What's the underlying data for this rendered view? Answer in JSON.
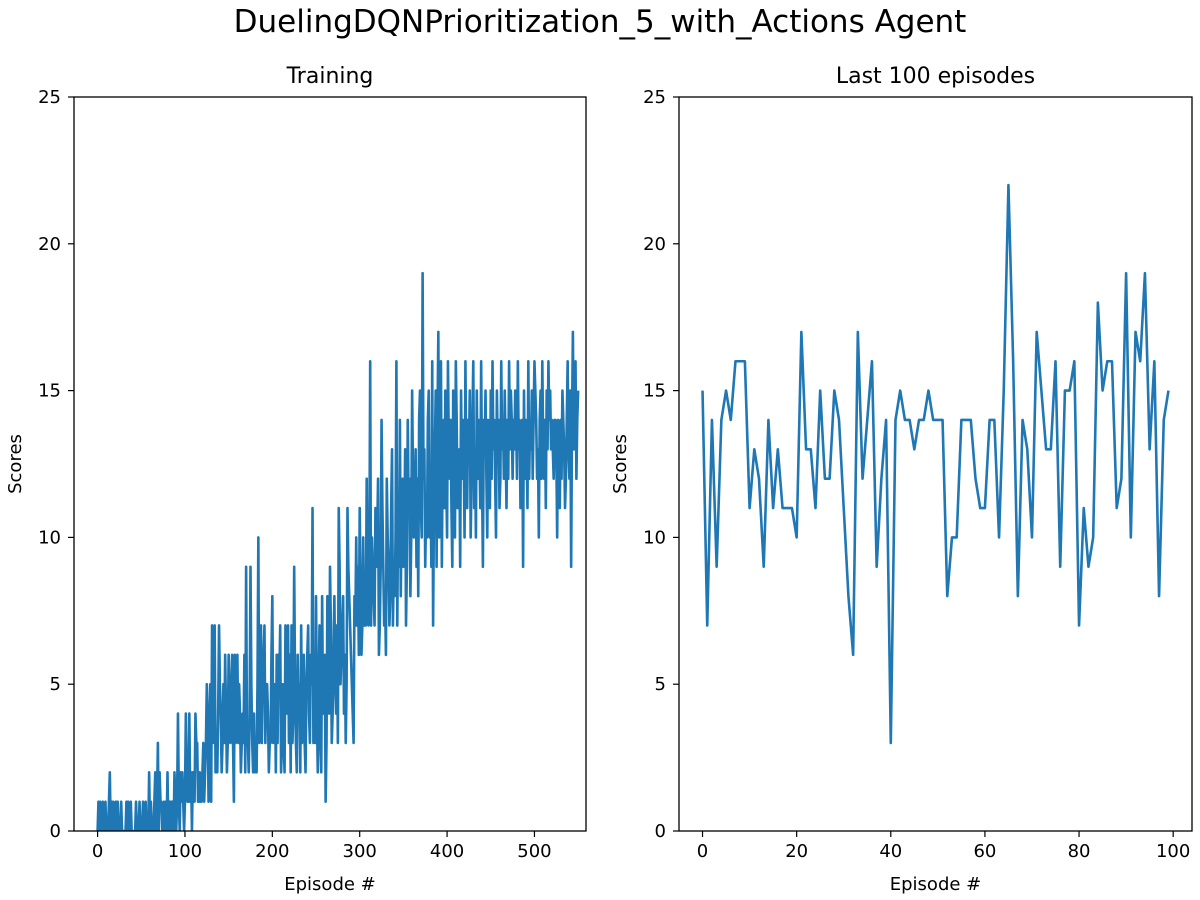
{
  "figure": {
    "suptitle": "DuelingDQNPrioritization_5_with_Actions Agent"
  },
  "colors": {
    "line": "#1f77b4",
    "axes": "#000000",
    "background": "#ffffff"
  },
  "chart_data": [
    {
      "type": "line",
      "title": "Training",
      "xlabel": "Episode #",
      "ylabel": "Scores",
      "xlim": [
        -27,
        559
      ],
      "ylim": [
        0,
        25
      ],
      "xticks": [
        0,
        100,
        200,
        300,
        400,
        500
      ],
      "yticks": [
        0,
        5,
        10,
        15,
        20,
        25
      ],
      "grid": false,
      "legend": "none",
      "series": [
        {
          "x_start": 0,
          "values": [
            0,
            1,
            0,
            1,
            0,
            0,
            1,
            0,
            0,
            1,
            0,
            0,
            0,
            1,
            2,
            0,
            1,
            0,
            1,
            0,
            0,
            1,
            0,
            1,
            0,
            0,
            0,
            1,
            0,
            0,
            0,
            0,
            0,
            1,
            0,
            1,
            0,
            0,
            1,
            0,
            0,
            0,
            0,
            0,
            1,
            0,
            0,
            0,
            1,
            0,
            0,
            0,
            1,
            0,
            0,
            1,
            0,
            0,
            0,
            2,
            0,
            1,
            0,
            0,
            0,
            1,
            2,
            0,
            1,
            3,
            0,
            2,
            1,
            1,
            0,
            0,
            1,
            0,
            1,
            0,
            2,
            0,
            1,
            1,
            0,
            1,
            1,
            0,
            2,
            1,
            0,
            1,
            4,
            1,
            0,
            2,
            1,
            2,
            1,
            0,
            1,
            4,
            2,
            1,
            1,
            4,
            1,
            2,
            0,
            2,
            2,
            1,
            4,
            3,
            3,
            1,
            1,
            2,
            1,
            1,
            2,
            3,
            1,
            2,
            3,
            5,
            4,
            1,
            3,
            5,
            1,
            7,
            4,
            3,
            7,
            2,
            3,
            2,
            4,
            7,
            5,
            4,
            2,
            3,
            5,
            3,
            6,
            4,
            2,
            3,
            6,
            4,
            3,
            5,
            6,
            3,
            1,
            6,
            3,
            4,
            6,
            3,
            5,
            4,
            2,
            3,
            4,
            3,
            6,
            2,
            9,
            3,
            3,
            2,
            4,
            9,
            5,
            3,
            2,
            4,
            2,
            3,
            2,
            5,
            10,
            3,
            4,
            7,
            3,
            5,
            6,
            7,
            3,
            5,
            5,
            4,
            2,
            3,
            3,
            6,
            8,
            3,
            4,
            5,
            2,
            6,
            3,
            6,
            5,
            7,
            2,
            3,
            5,
            3,
            2,
            7,
            5,
            4,
            7,
            3,
            6,
            2,
            7,
            3,
            4,
            9,
            5,
            3,
            2,
            6,
            4,
            5,
            2,
            7,
            3,
            4,
            6,
            3,
            2,
            5,
            6,
            7,
            4,
            3,
            6,
            5,
            11,
            3,
            6,
            3,
            8,
            4,
            2,
            5,
            7,
            3,
            2,
            8,
            4,
            5,
            6,
            1,
            3,
            8,
            5,
            4,
            9,
            7,
            3,
            4,
            6,
            8,
            5,
            4,
            7,
            3,
            11,
            9,
            5,
            6,
            7,
            8,
            4,
            6,
            3,
            5,
            11,
            9,
            8,
            7,
            6,
            5,
            4,
            3,
            8,
            7,
            10,
            7,
            9,
            6,
            11,
            8,
            6,
            7,
            10,
            7,
            8,
            7,
            12,
            8,
            7,
            9,
            16,
            7,
            10,
            9,
            8,
            7,
            11,
            9,
            10,
            12,
            6,
            7,
            9,
            14,
            11,
            9,
            7,
            8,
            6,
            12,
            10,
            9,
            7,
            8,
            11,
            13,
            7,
            9,
            8,
            10,
            16,
            7,
            11,
            9,
            14,
            8,
            11,
            12,
            9,
            10,
            13,
            7,
            9,
            14,
            11,
            12,
            8,
            10,
            15,
            12,
            10,
            11,
            13,
            9,
            12,
            8,
            14,
            15,
            11,
            10,
            19,
            12,
            13,
            9,
            11,
            10,
            14,
            15,
            10,
            12,
            9,
            16,
            7,
            11,
            13,
            15,
            9,
            14,
            17,
            10,
            12,
            16,
            9,
            13,
            14,
            11,
            15,
            12,
            10,
            16,
            13,
            12,
            14,
            11,
            9,
            15,
            13,
            10,
            16,
            14,
            11,
            12,
            13,
            9,
            15,
            12,
            14,
            13,
            10,
            16,
            12,
            11,
            14,
            13,
            15,
            10,
            12,
            14,
            16,
            11,
            13,
            10,
            15,
            12,
            14,
            13,
            11,
            16,
            12,
            9,
            14,
            13,
            15,
            12,
            10,
            14,
            13,
            11,
            15,
            12,
            16,
            13,
            14,
            12,
            10,
            15,
            13,
            14,
            11,
            12,
            16,
            13,
            14,
            12,
            15,
            13,
            11,
            14,
            12,
            16,
            13,
            15,
            14,
            12,
            14,
            13,
            15,
            14,
            12,
            16,
            13,
            14,
            11,
            12,
            14,
            9,
            15,
            12,
            14,
            13,
            11,
            16,
            12,
            14,
            13,
            15,
            12,
            14,
            16,
            15,
            14,
            12,
            13,
            10,
            14,
            15,
            12,
            16,
            13,
            12,
            14,
            11,
            15,
            13,
            16,
            14,
            15,
            13,
            14,
            13,
            12,
            14,
            14,
            13,
            10,
            14,
            13,
            11,
            14,
            12,
            15,
            14,
            13,
            11,
            12,
            14,
            16,
            13,
            12,
            15,
            9,
            14,
            17,
            13,
            15,
            16,
            12,
            14,
            15
          ]
        }
      ]
    },
    {
      "type": "line",
      "title": "Last 100 episodes",
      "xlabel": "Episode #",
      "ylabel": "Scores",
      "xlim": [
        -5,
        104
      ],
      "ylim": [
        0,
        25
      ],
      "xticks": [
        0,
        20,
        40,
        60,
        80,
        100
      ],
      "yticks": [
        0,
        5,
        10,
        15,
        20,
        25
      ],
      "grid": false,
      "legend": "none",
      "series": [
        {
          "x_start": 0,
          "values": [
            15,
            7,
            14,
            9,
            14,
            15,
            14,
            16,
            16,
            16,
            11,
            13,
            12,
            9,
            14,
            11,
            13,
            11,
            11,
            11,
            10,
            17,
            13,
            13,
            11,
            15,
            12,
            12,
            15,
            14,
            11,
            8,
            6,
            17,
            12,
            14,
            16,
            9,
            12,
            14,
            3,
            14,
            15,
            14,
            14,
            13,
            14,
            14,
            15,
            14,
            14,
            14,
            8,
            10,
            10,
            14,
            14,
            14,
            12,
            11,
            11,
            14,
            14,
            10,
            15,
            22,
            16,
            8,
            14,
            13,
            10,
            17,
            15,
            13,
            13,
            16,
            9,
            15,
            15,
            16,
            7,
            11,
            9,
            10,
            18,
            15,
            16,
            16,
            11,
            12,
            19,
            10,
            17,
            16,
            19,
            13,
            16,
            8,
            14,
            15
          ]
        }
      ]
    }
  ]
}
